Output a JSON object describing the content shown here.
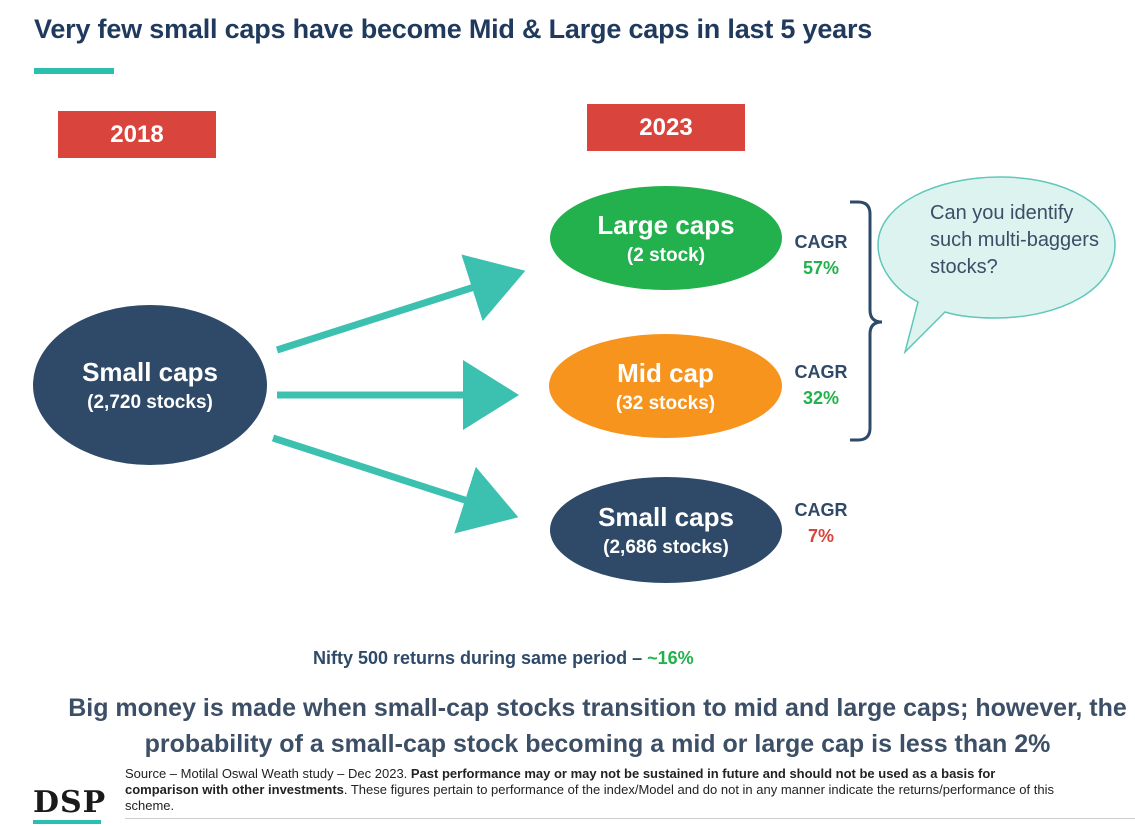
{
  "title": "Very few small caps have become Mid & Large caps in last 5 years",
  "years": {
    "left": "2018",
    "right": "2023"
  },
  "source_node": {
    "label": "Small caps",
    "count": "(2,720  stocks)"
  },
  "targets": [
    {
      "label": "Large caps",
      "count": "(2 stock)",
      "cagr_label": "CAGR",
      "cagr_value": "57%",
      "color": "#22b14c",
      "cagr_color": "#22b14c"
    },
    {
      "label": "Mid cap",
      "count": "(32 stocks)",
      "cagr_label": "CAGR",
      "cagr_value": "32%",
      "color": "#f7941d",
      "cagr_color": "#22b14c"
    },
    {
      "label": "Small caps",
      "count": "(2,686 stocks)",
      "cagr_label": "CAGR",
      "cagr_value": "7%",
      "color": "#2f4a68",
      "cagr_color": "#d9443c"
    }
  ],
  "callout": "Can you identify such multi-baggers stocks?",
  "nifty": {
    "text": "Nifty 500 returns during same period – ",
    "value": "~16%"
  },
  "bigmoney": "Big money is made when small-cap stocks transition to mid and large caps; however, the probability of a small-cap stock becoming a mid or large cap is less than 2%",
  "source": {
    "prefix": "Source – Motilal Oswal Weath study – Dec 2023. ",
    "bold": "Past performance may or may not be sustained in future and should not be used as a basis for comparison with other investments",
    "suffix": ". These figures pertain to performance of the index/Model and do not in any manner indicate the returns/performance of this scheme."
  },
  "logo": "DSP",
  "colors": {
    "accent": "#2bbfb0",
    "navy": "#1f3a5c",
    "red": "#d9443c"
  }
}
